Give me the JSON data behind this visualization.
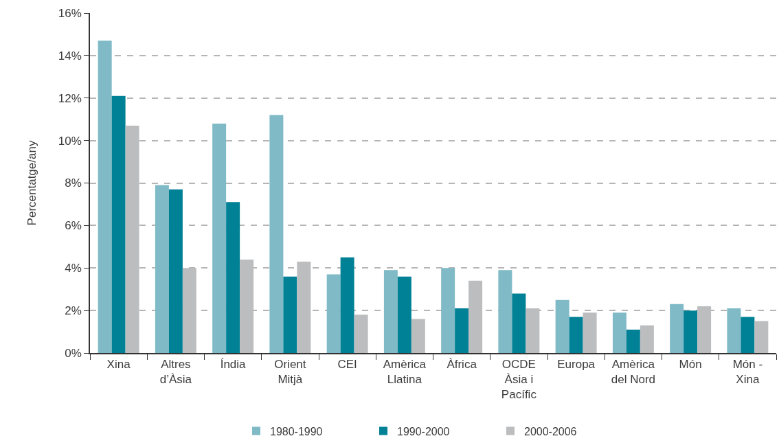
{
  "chart_data": {
    "type": "bar",
    "ylabel": "Percentatge/any",
    "categories": [
      "Xina",
      "Altres\nd’Àsia",
      "Índia",
      "Orient\nMitjà",
      "CEI",
      "Amèrica\nLlatina",
      "Àfrica",
      "OCDE\nÀsia i\nPacífic",
      "Europa",
      "Amèrica\ndel Nord",
      "Món",
      "Món -\nXina"
    ],
    "series": [
      {
        "name": "1980-1990",
        "color": "#7fbac6",
        "values": [
          14.7,
          7.9,
          10.8,
          11.2,
          3.7,
          3.9,
          4.0,
          3.9,
          2.5,
          1.9,
          2.3,
          2.1
        ]
      },
      {
        "name": "1990-2000",
        "color": "#008196",
        "values": [
          12.1,
          7.7,
          7.1,
          3.6,
          4.5,
          3.6,
          2.1,
          2.8,
          1.7,
          1.1,
          2.0,
          1.7
        ]
      },
      {
        "name": "2000-2006",
        "color": "#bcbdbf",
        "values": [
          10.7,
          4.0,
          4.4,
          4.3,
          1.8,
          1.6,
          3.4,
          2.1,
          1.9,
          1.3,
          2.2,
          1.5
        ]
      }
    ],
    "ylim": [
      0,
      16
    ],
    "yticks": [
      {
        "value": 0,
        "label": "0%"
      },
      {
        "value": 2,
        "label": "2%"
      },
      {
        "value": 4,
        "label": "4%"
      },
      {
        "value": 6,
        "label": "6%"
      },
      {
        "value": 8,
        "label": "8%"
      },
      {
        "value": 10,
        "label": "10%"
      },
      {
        "value": 12,
        "label": "12%"
      },
      {
        "value": 14,
        "label": "14%"
      },
      {
        "value": 16,
        "label": "16%"
      }
    ],
    "grid": "y",
    "legend": "bottom"
  }
}
